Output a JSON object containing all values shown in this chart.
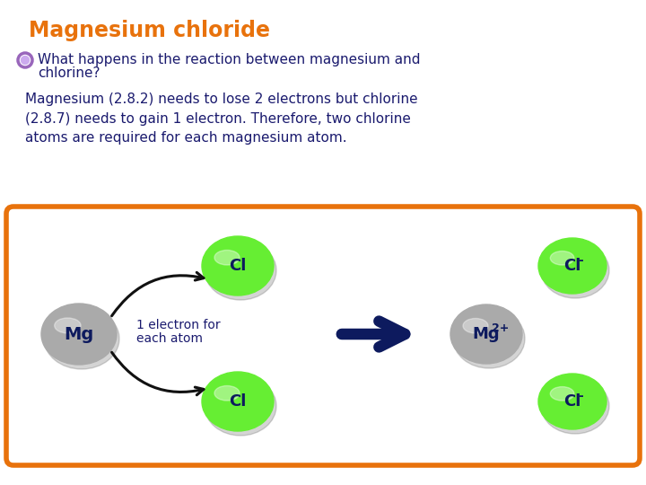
{
  "title": "Magnesium chloride",
  "title_color": "#E8720C",
  "bullet_text_line1": "What happens in the reaction between magnesium and",
  "bullet_text_line2": "chlorine?",
  "body_text": "Magnesium (2.8.2) needs to lose 2 electrons but chlorine\n(2.8.7) needs to gain 1 electron. Therefore, two chlorine\natoms are required for each magnesium atom.",
  "text_color": "#1a1a6e",
  "bg_color": "#ffffff",
  "box_edge_color": "#E8720C",
  "cl_color": "#66ee33",
  "arrow_color": "#0d1a5e",
  "curve_arrow_color": "#111111",
  "bullet_color_outer": "#9966bb",
  "bullet_color_inner": "#ccaaee",
  "label_color": "#0d1a5e",
  "mg_color": "#aaaaaa",
  "shadow_color": "#666666",
  "title_fontsize": 17,
  "body_fontsize": 11,
  "bullet_fontsize": 11
}
